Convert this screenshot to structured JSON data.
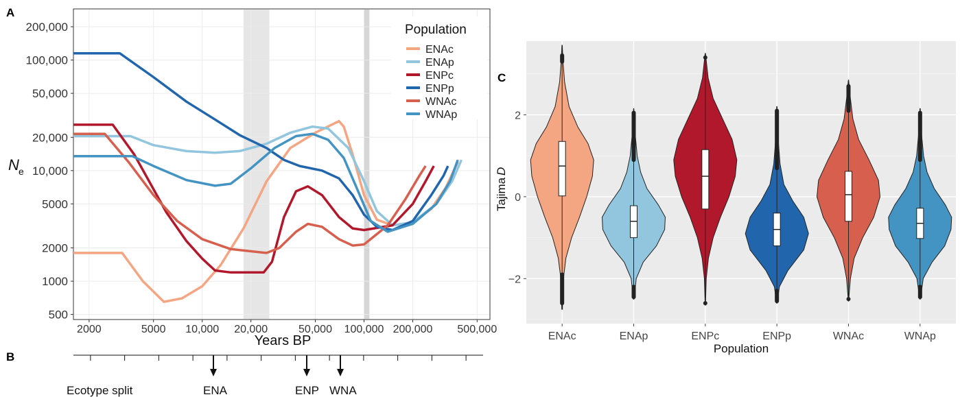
{
  "panel_labels": {
    "a": "A",
    "b": "B",
    "c": "C"
  },
  "chart_data": [
    {
      "panel": "A",
      "type": "line",
      "xlabel": "Years BP",
      "ylabel_main": "N",
      "ylabel_sub": "e",
      "x_scale": "log",
      "y_scale": "log",
      "xlim": [
        1600,
        600000
      ],
      "ylim": [
        450,
        290000
      ],
      "x_ticks": [
        {
          "v": 2000,
          "label": "2000"
        },
        {
          "v": 5000,
          "label": "5000"
        },
        {
          "v": 10000,
          "label": "10,000"
        },
        {
          "v": 20000,
          "label": "20,000"
        },
        {
          "v": 50000,
          "label": "50,000"
        },
        {
          "v": 100000,
          "label": "100,000"
        },
        {
          "v": 200000,
          "label": "200,000"
        },
        {
          "v": 500000,
          "label": "500,000"
        }
      ],
      "y_ticks": [
        {
          "v": 500,
          "label": "500"
        },
        {
          "v": 1000,
          "label": "1000"
        },
        {
          "v": 2000,
          "label": "2000"
        },
        {
          "v": 5000,
          "label": "5000"
        },
        {
          "v": 10000,
          "label": "10,000"
        },
        {
          "v": 20000,
          "label": "20,000"
        },
        {
          "v": 50000,
          "label": "50,000"
        },
        {
          "v": 100000,
          "label": "100,000"
        },
        {
          "v": 200000,
          "label": "200,000"
        }
      ],
      "shaded_bands": [
        [
          18000,
          26000
        ],
        [
          100000,
          108000
        ]
      ],
      "legend": {
        "title": "Population",
        "position": "top-right"
      },
      "series": [
        {
          "name": "ENAc",
          "color": "#f4a582",
          "points": [
            [
              1600,
              1800
            ],
            [
              3200,
              1800
            ],
            [
              4300,
              1000
            ],
            [
              5800,
              650
            ],
            [
              7500,
              700
            ],
            [
              10000,
              900
            ],
            [
              13000,
              1400
            ],
            [
              18000,
              3000
            ],
            [
              25000,
              8000
            ],
            [
              35000,
              16000
            ],
            [
              50000,
              22000
            ],
            [
              70000,
              28000
            ],
            [
              75000,
              25000
            ],
            [
              85000,
              14000
            ],
            [
              100000,
              6000
            ],
            [
              120000,
              3600
            ],
            [
              150000,
              3200
            ],
            [
              200000,
              3400
            ],
            [
              260000,
              4500
            ],
            [
              320000,
              7000
            ],
            [
              380000,
              12000
            ]
          ]
        },
        {
          "name": "ENAp",
          "color": "#92c5de",
          "points": [
            [
              1600,
              20500
            ],
            [
              3600,
              20500
            ],
            [
              5000,
              17000
            ],
            [
              8000,
              15000
            ],
            [
              12000,
              14500
            ],
            [
              17000,
              15000
            ],
            [
              25000,
              17500
            ],
            [
              35000,
              22000
            ],
            [
              48000,
              25000
            ],
            [
              60000,
              24000
            ],
            [
              80000,
              16000
            ],
            [
              100000,
              8000
            ],
            [
              120000,
              4300
            ],
            [
              150000,
              3200
            ],
            [
              200000,
              3400
            ],
            [
              280000,
              5000
            ],
            [
              350000,
              8000
            ],
            [
              400000,
              12500
            ]
          ]
        },
        {
          "name": "ENPc",
          "color": "#b2182b",
          "points": [
            [
              1600,
              26000
            ],
            [
              2800,
              26000
            ],
            [
              3800,
              14000
            ],
            [
              6000,
              4200
            ],
            [
              8000,
              2300
            ],
            [
              10000,
              1600
            ],
            [
              12000,
              1250
            ],
            [
              15000,
              1200
            ],
            [
              24000,
              1200
            ],
            [
              27000,
              1500
            ],
            [
              32000,
              3800
            ],
            [
              38000,
              6500
            ],
            [
              45000,
              7200
            ],
            [
              55000,
              6000
            ],
            [
              70000,
              3800
            ],
            [
              85000,
              3000
            ],
            [
              100000,
              2900
            ],
            [
              150000,
              3200
            ],
            [
              200000,
              5000
            ],
            [
              240000,
              8000
            ],
            [
              270000,
              11000
            ]
          ]
        },
        {
          "name": "ENPp",
          "color": "#2166ac",
          "points": [
            [
              1600,
              115000
            ],
            [
              3100,
              115000
            ],
            [
              5000,
              70000
            ],
            [
              8000,
              42000
            ],
            [
              12000,
              29000
            ],
            [
              17000,
              21000
            ],
            [
              25000,
              16000
            ],
            [
              32000,
              12500
            ],
            [
              40000,
              11000
            ],
            [
              55000,
              10000
            ],
            [
              70000,
              8500
            ],
            [
              85000,
              6000
            ],
            [
              100000,
              4000
            ],
            [
              120000,
              3100
            ],
            [
              150000,
              2900
            ],
            [
              200000,
              3500
            ],
            [
              260000,
              6000
            ],
            [
              310000,
              9000
            ],
            [
              330000,
              11000
            ]
          ]
        },
        {
          "name": "WNAc",
          "color": "#d6604d",
          "points": [
            [
              1600,
              21500
            ],
            [
              2500,
              21500
            ],
            [
              3500,
              12000
            ],
            [
              5000,
              6000
            ],
            [
              7000,
              3500
            ],
            [
              10000,
              2400
            ],
            [
              15000,
              1950
            ],
            [
              25000,
              1800
            ],
            [
              30000,
              2000
            ],
            [
              38000,
              2800
            ],
            [
              45000,
              3300
            ],
            [
              55000,
              3100
            ],
            [
              70000,
              2400
            ],
            [
              85000,
              2100
            ],
            [
              100000,
              2150
            ],
            [
              140000,
              3200
            ],
            [
              180000,
              5500
            ],
            [
              220000,
              9000
            ],
            [
              240000,
              11000
            ]
          ]
        },
        {
          "name": "WNAp",
          "color": "#4393c3",
          "points": [
            [
              1600,
              13500
            ],
            [
              3700,
              13500
            ],
            [
              5000,
              11000
            ],
            [
              8000,
              8200
            ],
            [
              12000,
              7300
            ],
            [
              15000,
              7600
            ],
            [
              20000,
              10500
            ],
            [
              28000,
              16000
            ],
            [
              38000,
              20500
            ],
            [
              48000,
              21500
            ],
            [
              60000,
              19000
            ],
            [
              75000,
              13000
            ],
            [
              90000,
              7000
            ],
            [
              110000,
              3500
            ],
            [
              140000,
              2800
            ],
            [
              200000,
              3300
            ],
            [
              280000,
              5000
            ],
            [
              340000,
              8000
            ],
            [
              380000,
              12500
            ]
          ]
        }
      ]
    },
    {
      "panel": "B",
      "type": "timeline",
      "tick_count": 12,
      "events": [
        {
          "label": "Ecotype split",
          "arrow": false
        },
        {
          "label": "ENA",
          "arrow": true
        },
        {
          "label": "ENP",
          "arrow": true
        },
        {
          "label": "WNA",
          "arrow": true
        }
      ]
    },
    {
      "panel": "C",
      "type": "violin",
      "xlabel": "Population",
      "ylabel_main": "Tajima",
      "ylabel_sub": "D",
      "ylim": [
        -3.1,
        3.8
      ],
      "y_ticks": [
        {
          "v": 2,
          "label": "2"
        },
        {
          "v": 0,
          "label": "0"
        },
        {
          "v": -2,
          "label": "−2"
        }
      ],
      "grid": true,
      "categories": [
        "ENAc",
        "ENAp",
        "ENPc",
        "ENPp",
        "WNAc",
        "WNAp"
      ],
      "colors": [
        "#f4a582",
        "#92c5de",
        "#b2182b",
        "#2166ac",
        "#d6604d",
        "#4393c3"
      ],
      "violins": [
        {
          "min": -2.75,
          "max": 3.7,
          "q1": 0.02,
          "median": 0.75,
          "q3": 1.35,
          "whisker_lo": -1.9,
          "whisker_hi": 3.3,
          "outlier_lo": -2.6,
          "outlier_hi": 3.45,
          "profile": [
            [
              -2.75,
              0.01
            ],
            [
              -2.0,
              0.04
            ],
            [
              -1.5,
              0.12
            ],
            [
              -1.0,
              0.3
            ],
            [
              -0.5,
              0.55
            ],
            [
              0.0,
              0.78
            ],
            [
              0.5,
              0.96
            ],
            [
              0.9,
              1.0
            ],
            [
              1.3,
              0.82
            ],
            [
              1.7,
              0.5
            ],
            [
              2.2,
              0.22
            ],
            [
              2.8,
              0.08
            ],
            [
              3.3,
              0.03
            ],
            [
              3.7,
              0.005
            ]
          ]
        },
        {
          "min": -2.5,
          "max": 2.15,
          "q1": -1.0,
          "median": -0.6,
          "q3": -0.22,
          "whisker_lo": -2.2,
          "whisker_hi": 0.9,
          "outlier_lo": -2.45,
          "outlier_hi": 2.05,
          "profile": [
            [
              -2.5,
              0.01
            ],
            [
              -2.0,
              0.08
            ],
            [
              -1.6,
              0.3
            ],
            [
              -1.2,
              0.72
            ],
            [
              -0.8,
              0.98
            ],
            [
              -0.5,
              1.0
            ],
            [
              -0.2,
              0.78
            ],
            [
              0.2,
              0.42
            ],
            [
              0.6,
              0.22
            ],
            [
              1.0,
              0.11
            ],
            [
              1.5,
              0.05
            ],
            [
              2.15,
              0.005
            ]
          ]
        },
        {
          "min": -2.65,
          "max": 3.5,
          "q1": -0.3,
          "median": 0.5,
          "q3": 1.15,
          "whisker_lo": -2.6,
          "whisker_hi": 3.4,
          "outlier_lo": -2.6,
          "outlier_hi": 3.4,
          "profile": [
            [
              -2.65,
              0.005
            ],
            [
              -2.0,
              0.03
            ],
            [
              -1.5,
              0.1
            ],
            [
              -1.0,
              0.25
            ],
            [
              -0.5,
              0.48
            ],
            [
              0.0,
              0.75
            ],
            [
              0.5,
              0.95
            ],
            [
              0.9,
              1.0
            ],
            [
              1.4,
              0.85
            ],
            [
              1.9,
              0.55
            ],
            [
              2.4,
              0.25
            ],
            [
              2.9,
              0.09
            ],
            [
              3.5,
              0.005
            ]
          ]
        },
        {
          "min": -2.6,
          "max": 2.2,
          "q1": -1.2,
          "median": -0.8,
          "q3": -0.4,
          "whisker_lo": -2.3,
          "whisker_hi": 0.7,
          "outlier_lo": -2.55,
          "outlier_hi": 2.1,
          "profile": [
            [
              -2.6,
              0.01
            ],
            [
              -2.2,
              0.08
            ],
            [
              -1.8,
              0.35
            ],
            [
              -1.3,
              0.85
            ],
            [
              -0.9,
              1.0
            ],
            [
              -0.5,
              0.85
            ],
            [
              -0.1,
              0.5
            ],
            [
              0.3,
              0.22
            ],
            [
              0.8,
              0.1
            ],
            [
              1.3,
              0.05
            ],
            [
              1.8,
              0.03
            ],
            [
              2.2,
              0.005
            ]
          ]
        },
        {
          "min": -2.55,
          "max": 2.85,
          "q1": -0.6,
          "median": 0.05,
          "q3": 0.62,
          "whisker_lo": -2.5,
          "whisker_hi": 2.1,
          "outlier_lo": -2.5,
          "outlier_hi": 2.7,
          "profile": [
            [
              -2.55,
              0.005
            ],
            [
              -2.0,
              0.06
            ],
            [
              -1.5,
              0.18
            ],
            [
              -1.0,
              0.45
            ],
            [
              -0.5,
              0.8
            ],
            [
              0.0,
              1.0
            ],
            [
              0.4,
              0.95
            ],
            [
              0.9,
              0.65
            ],
            [
              1.4,
              0.32
            ],
            [
              1.9,
              0.14
            ],
            [
              2.4,
              0.06
            ],
            [
              2.85,
              0.005
            ]
          ]
        },
        {
          "min": -2.5,
          "max": 2.15,
          "q1": -1.02,
          "median": -0.65,
          "q3": -0.28,
          "whisker_lo": -2.2,
          "whisker_hi": 0.9,
          "outlier_lo": -2.45,
          "outlier_hi": 2.05,
          "profile": [
            [
              -2.5,
              0.01
            ],
            [
              -2.0,
              0.1
            ],
            [
              -1.6,
              0.38
            ],
            [
              -1.2,
              0.78
            ],
            [
              -0.8,
              0.98
            ],
            [
              -0.5,
              1.0
            ],
            [
              -0.2,
              0.8
            ],
            [
              0.2,
              0.45
            ],
            [
              0.6,
              0.22
            ],
            [
              1.0,
              0.11
            ],
            [
              1.5,
              0.05
            ],
            [
              2.15,
              0.005
            ]
          ]
        }
      ]
    }
  ]
}
